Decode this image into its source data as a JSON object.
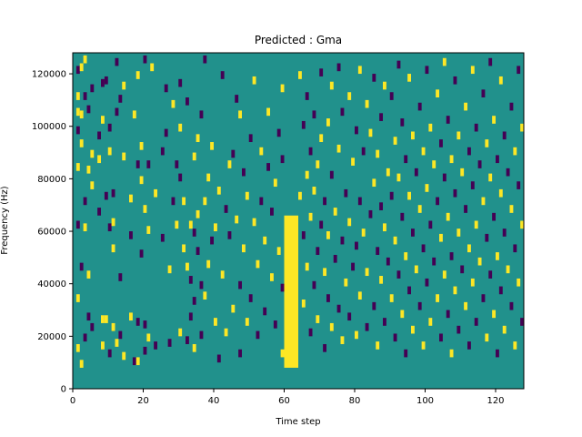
{
  "chart_data": {
    "type": "heatmap",
    "title": "Predicted : Gma",
    "xlabel": "Time step",
    "ylabel": "Frequency (Hz)",
    "xlim": [
      0,
      128
    ],
    "ylim": [
      0,
      128000
    ],
    "xticks": [
      0,
      20,
      40,
      60,
      80,
      100,
      120
    ],
    "xtick_labels": [
      "0",
      "20",
      "40",
      "60",
      "80",
      "100",
      "120"
    ],
    "yticks": [
      0,
      20000,
      40000,
      60000,
      80000,
      100000,
      120000
    ],
    "ytick_labels": [
      "0",
      "20000",
      "40000",
      "60000",
      "80000",
      "100000",
      "120000"
    ],
    "grid": false,
    "colors": {
      "background": "#21918c",
      "low": "#440154",
      "high": "#fde725"
    },
    "n_time_steps": 128,
    "n_freq_bins": 128,
    "freq_per_bin": 1000,
    "dominant_band": {
      "time_from": 60,
      "time_to": 63,
      "freq_from": 8000,
      "freq_to": 66000,
      "value": "high"
    },
    "cells": [
      [
        1,
        14,
        "h"
      ],
      [
        1,
        33,
        "h"
      ],
      [
        1,
        61,
        "l"
      ],
      [
        1,
        83,
        "h"
      ],
      [
        1,
        97,
        "l"
      ],
      [
        1,
        104,
        "h"
      ],
      [
        1,
        110,
        "h"
      ],
      [
        1,
        120,
        "l"
      ],
      [
        2,
        8,
        "h"
      ],
      [
        2,
        45,
        "l"
      ],
      [
        2,
        92,
        "h"
      ],
      [
        2,
        103,
        "h"
      ],
      [
        2,
        121,
        "h"
      ],
      [
        3,
        18,
        "l"
      ],
      [
        3,
        60,
        "h"
      ],
      [
        3,
        70,
        "l"
      ],
      [
        3,
        110,
        "l"
      ],
      [
        3,
        124,
        "h"
      ],
      [
        4,
        26,
        "l"
      ],
      [
        4,
        42,
        "h"
      ],
      [
        4,
        82,
        "h"
      ],
      [
        4,
        105,
        "l"
      ],
      [
        5,
        22,
        "l"
      ],
      [
        5,
        76,
        "h"
      ],
      [
        5,
        88,
        "h"
      ],
      [
        5,
        113,
        "l"
      ],
      [
        7,
        66,
        "l"
      ],
      [
        7,
        86,
        "h"
      ],
      [
        7,
        95,
        "l"
      ],
      [
        8,
        15,
        "h"
      ],
      [
        8,
        25,
        "h"
      ],
      [
        8,
        101,
        "h"
      ],
      [
        8,
        115,
        "l"
      ],
      [
        9,
        25,
        "h"
      ],
      [
        9,
        72,
        "l"
      ],
      [
        9,
        116,
        "l"
      ],
      [
        10,
        12,
        "l"
      ],
      [
        10,
        60,
        "l"
      ],
      [
        10,
        89,
        "h"
      ],
      [
        10,
        98,
        "l"
      ],
      [
        11,
        22,
        "h"
      ],
      [
        11,
        52,
        "h"
      ],
      [
        11,
        62,
        "h"
      ],
      [
        11,
        73,
        "l"
      ],
      [
        12,
        16,
        "h"
      ],
      [
        12,
        104,
        "l"
      ],
      [
        12,
        123,
        "l"
      ],
      [
        13,
        19,
        "l"
      ],
      [
        13,
        41,
        "l"
      ],
      [
        13,
        109,
        "l"
      ],
      [
        14,
        11,
        "h"
      ],
      [
        14,
        87,
        "h"
      ],
      [
        14,
        114,
        "h"
      ],
      [
        16,
        26,
        "h"
      ],
      [
        16,
        57,
        "l"
      ],
      [
        16,
        71,
        "h"
      ],
      [
        17,
        9,
        "l"
      ],
      [
        17,
        103,
        "h"
      ],
      [
        18,
        9,
        "h"
      ],
      [
        18,
        24,
        "l"
      ],
      [
        18,
        84,
        "l"
      ],
      [
        18,
        118,
        "h"
      ],
      [
        19,
        50,
        "l"
      ],
      [
        19,
        78,
        "h"
      ],
      [
        19,
        91,
        "h"
      ],
      [
        20,
        13,
        "l"
      ],
      [
        20,
        23,
        "l"
      ],
      [
        20,
        67,
        "h"
      ],
      [
        20,
        124,
        "l"
      ],
      [
        21,
        18,
        "h"
      ],
      [
        21,
        59,
        "h"
      ],
      [
        21,
        84,
        "l"
      ],
      [
        22,
        121,
        "h"
      ],
      [
        23,
        15,
        "l"
      ],
      [
        23,
        73,
        "h"
      ],
      [
        25,
        56,
        "l"
      ],
      [
        25,
        89,
        "l"
      ],
      [
        26,
        96,
        "l"
      ],
      [
        26,
        113,
        "l"
      ],
      [
        27,
        16,
        "l"
      ],
      [
        27,
        44,
        "h"
      ],
      [
        28,
        70,
        "l"
      ],
      [
        28,
        107,
        "h"
      ],
      [
        29,
        61,
        "h"
      ],
      [
        29,
        84,
        "l"
      ],
      [
        30,
        20,
        "h"
      ],
      [
        30,
        79,
        "l"
      ],
      [
        30,
        98,
        "h"
      ],
      [
        30,
        115,
        "l"
      ],
      [
        31,
        52,
        "h"
      ],
      [
        31,
        70,
        "h"
      ],
      [
        32,
        17,
        "l"
      ],
      [
        32,
        45,
        "h"
      ],
      [
        32,
        108,
        "l"
      ],
      [
        33,
        26,
        "l"
      ],
      [
        33,
        40,
        "l"
      ],
      [
        33,
        61,
        "h"
      ],
      [
        34,
        14,
        "h"
      ],
      [
        34,
        32,
        "l"
      ],
      [
        34,
        58,
        "l"
      ],
      [
        34,
        87,
        "h"
      ],
      [
        35,
        51,
        "l"
      ],
      [
        35,
        65,
        "h"
      ],
      [
        35,
        94,
        "h"
      ],
      [
        36,
        19,
        "l"
      ],
      [
        36,
        38,
        "l"
      ],
      [
        36,
        103,
        "l"
      ],
      [
        37,
        34,
        "h"
      ],
      [
        37,
        70,
        "h"
      ],
      [
        37,
        124,
        "l"
      ],
      [
        38,
        46,
        "h"
      ],
      [
        38,
        79,
        "h"
      ],
      [
        39,
        55,
        "l"
      ],
      [
        39,
        91,
        "h"
      ],
      [
        40,
        24,
        "h"
      ],
      [
        40,
        60,
        "h"
      ],
      [
        41,
        10,
        "l"
      ],
      [
        41,
        74,
        "h"
      ],
      [
        42,
        42,
        "h"
      ],
      [
        42,
        118,
        "l"
      ],
      [
        43,
        20,
        "h"
      ],
      [
        43,
        67,
        "l"
      ],
      [
        44,
        57,
        "l"
      ],
      [
        44,
        84,
        "h"
      ],
      [
        45,
        29,
        "h"
      ],
      [
        45,
        88,
        "l"
      ],
      [
        46,
        63,
        "h"
      ],
      [
        46,
        109,
        "l"
      ],
      [
        47,
        12,
        "l"
      ],
      [
        47,
        38,
        "l"
      ],
      [
        47,
        103,
        "h"
      ],
      [
        48,
        52,
        "h"
      ],
      [
        48,
        81,
        "l"
      ],
      [
        49,
        72,
        "h"
      ],
      [
        49,
        24,
        "h"
      ],
      [
        50,
        33,
        "l"
      ],
      [
        50,
        94,
        "l"
      ],
      [
        51,
        62,
        "h"
      ],
      [
        51,
        116,
        "h"
      ],
      [
        52,
        19,
        "l"
      ],
      [
        52,
        46,
        "h"
      ],
      [
        53,
        70,
        "l"
      ],
      [
        53,
        89,
        "h"
      ],
      [
        54,
        28,
        "l"
      ],
      [
        54,
        55,
        "h"
      ],
      [
        55,
        83,
        "l"
      ],
      [
        55,
        104,
        "h"
      ],
      [
        56,
        41,
        "h"
      ],
      [
        56,
        66,
        "l"
      ],
      [
        57,
        23,
        "l"
      ],
      [
        57,
        77,
        "h"
      ],
      [
        58,
        51,
        "h"
      ],
      [
        58,
        96,
        "l"
      ],
      [
        59,
        12,
        "h"
      ],
      [
        59,
        37,
        "l"
      ],
      [
        59,
        86,
        "l"
      ],
      [
        59,
        113,
        "h"
      ],
      [
        64,
        72,
        "h"
      ],
      [
        64,
        118,
        "h"
      ],
      [
        65,
        31,
        "h"
      ],
      [
        65,
        57,
        "l"
      ],
      [
        65,
        99,
        "l"
      ],
      [
        66,
        45,
        "h"
      ],
      [
        66,
        80,
        "h"
      ],
      [
        66,
        110,
        "l"
      ],
      [
        67,
        20,
        "l"
      ],
      [
        67,
        64,
        "h"
      ],
      [
        67,
        89,
        "l"
      ],
      [
        68,
        38,
        "l"
      ],
      [
        68,
        74,
        "h"
      ],
      [
        68,
        103,
        "l"
      ],
      [
        69,
        25,
        "h"
      ],
      [
        69,
        51,
        "l"
      ],
      [
        69,
        84,
        "h"
      ],
      [
        70,
        61,
        "l"
      ],
      [
        70,
        94,
        "h"
      ],
      [
        70,
        119,
        "l"
      ],
      [
        71,
        14,
        "l"
      ],
      [
        71,
        43,
        "h"
      ],
      [
        71,
        70,
        "l"
      ],
      [
        72,
        33,
        "l"
      ],
      [
        72,
        57,
        "h"
      ],
      [
        72,
        100,
        "h"
      ],
      [
        73,
        22,
        "h"
      ],
      [
        73,
        80,
        "l"
      ],
      [
        73,
        114,
        "h"
      ],
      [
        74,
        48,
        "l"
      ],
      [
        74,
        66,
        "h"
      ],
      [
        75,
        29,
        "l"
      ],
      [
        75,
        90,
        "h"
      ],
      [
        75,
        121,
        "l"
      ],
      [
        76,
        17,
        "h"
      ],
      [
        76,
        55,
        "l"
      ],
      [
        76,
        104,
        "l"
      ],
      [
        77,
        39,
        "h"
      ],
      [
        77,
        73,
        "l"
      ],
      [
        78,
        26,
        "l"
      ],
      [
        78,
        62,
        "h"
      ],
      [
        78,
        110,
        "h"
      ],
      [
        79,
        45,
        "l"
      ],
      [
        79,
        85,
        "h"
      ],
      [
        80,
        19,
        "h"
      ],
      [
        80,
        53,
        "l"
      ],
      [
        80,
        97,
        "l"
      ],
      [
        81,
        34,
        "h"
      ],
      [
        81,
        70,
        "l"
      ],
      [
        81,
        120,
        "h"
      ],
      [
        82,
        58,
        "h"
      ],
      [
        82,
        89,
        "l"
      ],
      [
        83,
        22,
        "l"
      ],
      [
        83,
        43,
        "h"
      ],
      [
        83,
        107,
        "h"
      ],
      [
        84,
        65,
        "l"
      ],
      [
        84,
        96,
        "h"
      ],
      [
        85,
        30,
        "l"
      ],
      [
        85,
        77,
        "h"
      ],
      [
        85,
        117,
        "l"
      ],
      [
        86,
        15,
        "h"
      ],
      [
        86,
        51,
        "l"
      ],
      [
        86,
        88,
        "h"
      ],
      [
        87,
        40,
        "h"
      ],
      [
        87,
        68,
        "l"
      ],
      [
        87,
        102,
        "l"
      ],
      [
        88,
        24,
        "l"
      ],
      [
        88,
        60,
        "h"
      ],
      [
        88,
        114,
        "h"
      ],
      [
        89,
        47,
        "l"
      ],
      [
        89,
        81,
        "h"
      ],
      [
        90,
        33,
        "h"
      ],
      [
        90,
        72,
        "l"
      ],
      [
        90,
        110,
        "l"
      ],
      [
        91,
        18,
        "l"
      ],
      [
        91,
        55,
        "h"
      ],
      [
        91,
        93,
        "h"
      ],
      [
        92,
        42,
        "l"
      ],
      [
        92,
        79,
        "h"
      ],
      [
        92,
        122,
        "l"
      ],
      [
        93,
        27,
        "h"
      ],
      [
        93,
        64,
        "l"
      ],
      [
        93,
        100,
        "l"
      ],
      [
        94,
        12,
        "l"
      ],
      [
        94,
        49,
        "h"
      ],
      [
        94,
        86,
        "l"
      ],
      [
        95,
        36,
        "l"
      ],
      [
        95,
        72,
        "h"
      ],
      [
        95,
        117,
        "h"
      ],
      [
        96,
        21,
        "h"
      ],
      [
        96,
        58,
        "l"
      ],
      [
        96,
        95,
        "h"
      ],
      [
        97,
        44,
        "h"
      ],
      [
        97,
        81,
        "l"
      ],
      [
        98,
        30,
        "l"
      ],
      [
        98,
        67,
        "h"
      ],
      [
        98,
        106,
        "l"
      ],
      [
        99,
        15,
        "h"
      ],
      [
        99,
        52,
        "l"
      ],
      [
        99,
        89,
        "h"
      ],
      [
        100,
        39,
        "l"
      ],
      [
        100,
        75,
        "h"
      ],
      [
        100,
        120,
        "l"
      ],
      [
        101,
        24,
        "h"
      ],
      [
        101,
        61,
        "l"
      ],
      [
        101,
        98,
        "h"
      ],
      [
        102,
        47,
        "l"
      ],
      [
        102,
        84,
        "h"
      ],
      [
        103,
        33,
        "h"
      ],
      [
        103,
        70,
        "l"
      ],
      [
        103,
        111,
        "h"
      ],
      [
        104,
        18,
        "l"
      ],
      [
        104,
        56,
        "h"
      ],
      [
        104,
        92,
        "l"
      ],
      [
        105,
        42,
        "h"
      ],
      [
        105,
        79,
        "l"
      ],
      [
        105,
        123,
        "h"
      ],
      [
        106,
        27,
        "l"
      ],
      [
        106,
        64,
        "h"
      ],
      [
        106,
        101,
        "l"
      ],
      [
        107,
        12,
        "h"
      ],
      [
        107,
        49,
        "l"
      ],
      [
        107,
        86,
        "h"
      ],
      [
        108,
        36,
        "h"
      ],
      [
        108,
        73,
        "l"
      ],
      [
        108,
        116,
        "l"
      ],
      [
        109,
        21,
        "l"
      ],
      [
        109,
        58,
        "h"
      ],
      [
        109,
        95,
        "h"
      ],
      [
        110,
        44,
        "l"
      ],
      [
        110,
        81,
        "h"
      ],
      [
        111,
        30,
        "h"
      ],
      [
        111,
        67,
        "l"
      ],
      [
        111,
        106,
        "h"
      ],
      [
        112,
        15,
        "l"
      ],
      [
        112,
        52,
        "h"
      ],
      [
        112,
        89,
        "l"
      ],
      [
        113,
        39,
        "h"
      ],
      [
        113,
        76,
        "l"
      ],
      [
        113,
        120,
        "h"
      ],
      [
        114,
        24,
        "l"
      ],
      [
        114,
        61,
        "h"
      ],
      [
        114,
        98,
        "l"
      ],
      [
        115,
        47,
        "h"
      ],
      [
        115,
        84,
        "l"
      ],
      [
        116,
        33,
        "l"
      ],
      [
        116,
        70,
        "h"
      ],
      [
        116,
        111,
        "l"
      ],
      [
        117,
        18,
        "h"
      ],
      [
        117,
        56,
        "l"
      ],
      [
        117,
        92,
        "h"
      ],
      [
        118,
        42,
        "l"
      ],
      [
        118,
        79,
        "h"
      ],
      [
        118,
        123,
        "l"
      ],
      [
        119,
        27,
        "h"
      ],
      [
        119,
        64,
        "l"
      ],
      [
        119,
        101,
        "h"
      ],
      [
        120,
        12,
        "l"
      ],
      [
        120,
        49,
        "h"
      ],
      [
        120,
        86,
        "l"
      ],
      [
        121,
        36,
        "l"
      ],
      [
        121,
        73,
        "h"
      ],
      [
        121,
        116,
        "h"
      ],
      [
        122,
        21,
        "h"
      ],
      [
        122,
        58,
        "l"
      ],
      [
        122,
        95,
        "l"
      ],
      [
        123,
        44,
        "h"
      ],
      [
        123,
        81,
        "l"
      ],
      [
        124,
        30,
        "l"
      ],
      [
        124,
        67,
        "h"
      ],
      [
        124,
        106,
        "l"
      ],
      [
        125,
        15,
        "h"
      ],
      [
        125,
        52,
        "l"
      ],
      [
        125,
        89,
        "h"
      ],
      [
        126,
        39,
        "h"
      ],
      [
        126,
        76,
        "l"
      ],
      [
        126,
        120,
        "l"
      ],
      [
        127,
        24,
        "l"
      ],
      [
        127,
        61,
        "h"
      ],
      [
        127,
        98,
        "h"
      ]
    ]
  }
}
